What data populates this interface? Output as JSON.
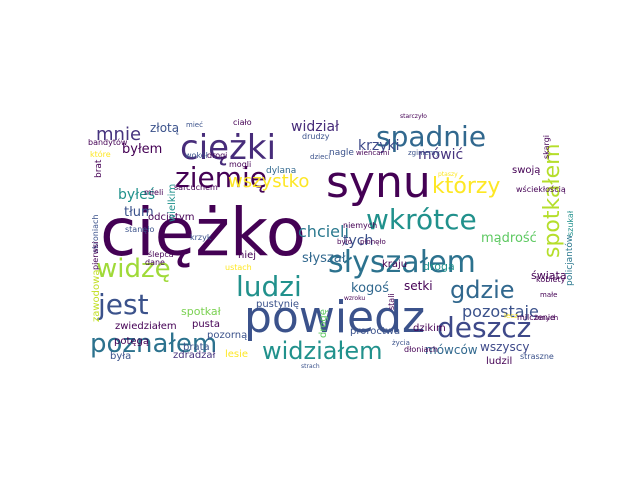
{
  "words": [
    {
      "t": "ciężko",
      "c": "#440154"
    },
    {
      "t": "synu",
      "c": "#440154"
    },
    {
      "t": "powiedz",
      "c": "#3b528b"
    },
    {
      "t": "ciężki",
      "c": "#472c7a"
    },
    {
      "t": "spadnie",
      "c": "#31688e"
    },
    {
      "t": "wkrótce",
      "c": "#21918c"
    },
    {
      "t": "słyszałem",
      "c": "#2c728e"
    },
    {
      "t": "ziemię",
      "c": "#440154"
    },
    {
      "t": "widzę",
      "c": "#a0da39"
    },
    {
      "t": "jest",
      "c": "#3b528b"
    },
    {
      "t": "ludzi",
      "c": "#21918c"
    },
    {
      "t": "poznałem",
      "c": "#2c728e"
    },
    {
      "t": "deszcz",
      "c": "#3e4989"
    },
    {
      "t": "widziałem",
      "c": "#21918c"
    },
    {
      "t": "gdzie",
      "c": "#31688e"
    },
    {
      "t": "którzy",
      "c": "#fde725"
    },
    {
      "t": "spotkałem",
      "c": "#b5de2b"
    },
    {
      "t": "wszystko",
      "c": "#fde725"
    },
    {
      "t": "mnie",
      "c": "#46337e"
    },
    {
      "t": "chcieli",
      "c": "#2a788e"
    },
    {
      "t": "pozostaje",
      "c": "#3b528b"
    },
    {
      "t": "widział",
      "c": "#472c7a"
    },
    {
      "t": "krzyki",
      "c": "#3e4989"
    },
    {
      "t": "mówić",
      "c": "#46337e"
    },
    {
      "t": "byłem",
      "c": "#440154"
    },
    {
      "t": "złotą",
      "c": "#3b528b"
    },
    {
      "t": "byłeś",
      "c": "#21918c"
    },
    {
      "t": "tłum",
      "c": "#3b528b"
    },
    {
      "t": "tych",
      "c": "#3b528b"
    },
    {
      "t": "mądrość",
      "c": "#5ec962"
    },
    {
      "t": "słyszał",
      "c": "#31688e"
    },
    {
      "t": "kogoś",
      "c": "#31688e"
    },
    {
      "t": "setki",
      "c": "#440154"
    },
    {
      "t": "odciętym",
      "c": "#440154"
    },
    {
      "t": "spotkał",
      "c": "#7ad151"
    },
    {
      "t": "pusta",
      "c": "#440154"
    },
    {
      "t": "brata",
      "c": "#3b528b"
    },
    {
      "t": "zdradzał",
      "c": "#46337e"
    },
    {
      "t": "potęgą",
      "c": "#440154"
    },
    {
      "t": "zwiedziałem",
      "c": "#440154"
    },
    {
      "t": "była",
      "c": "#3b528b"
    },
    {
      "t": "mówców",
      "c": "#31688e"
    },
    {
      "t": "wszyscy",
      "c": "#3e4989"
    },
    {
      "t": "ludzil",
      "c": "#440154"
    },
    {
      "t": "świata",
      "c": "#440154"
    },
    {
      "t": "droga",
      "c": "#21918c"
    },
    {
      "t": "kraju",
      "c": "#440154"
    },
    {
      "t": "dzikim",
      "c": "#440154"
    },
    {
      "t": "proroctwa",
      "c": "#3b528b"
    },
    {
      "t": "pustynię",
      "c": "#3b528b"
    },
    {
      "t": "drogę",
      "c": "#5ec962"
    },
    {
      "t": "pozorną",
      "c": "#3b528b"
    },
    {
      "t": "lesie",
      "c": "#fde725"
    },
    {
      "t": "zawodową",
      "c": "#c2df23"
    },
    {
      "t": "swoją",
      "c": "#440154"
    },
    {
      "t": "policjantów",
      "c": "#2a788e"
    },
    {
      "t": "nagle",
      "c": "#3b528b"
    },
    {
      "t": "dylana",
      "c": "#31688e"
    },
    {
      "t": "mogli",
      "c": "#440154"
    },
    {
      "t": "drogi",
      "c": "#440154"
    },
    {
      "t": "wokół",
      "c": "#3b528b"
    },
    {
      "t": "bandytów",
      "c": "#440154"
    },
    {
      "t": "które",
      "c": "#fde725"
    },
    {
      "t": "brat",
      "c": "#440154"
    },
    {
      "t": "skroniach",
      "c": "#3b528b"
    },
    {
      "t": "pierwsi",
      "c": "#440154"
    },
    {
      "t": "stanęło",
      "c": "#3b528b"
    },
    {
      "t": "krzyk",
      "c": "#3b528b"
    },
    {
      "t": "ślepca",
      "c": "#440154"
    },
    {
      "t": "dane",
      "c": "#440154"
    },
    {
      "t": "ustach",
      "c": "#fde725"
    },
    {
      "t": "niej",
      "c": "#440154"
    },
    {
      "t": "było",
      "c": "#440154"
    },
    {
      "t": "płonęło",
      "c": "#440154"
    },
    {
      "t": "niemych",
      "c": "#440154"
    },
    {
      "t": "mieli",
      "c": "#440154"
    },
    {
      "t": "sarcuchem",
      "c": "#440154"
    },
    {
      "t": "wielkim",
      "c": "#21918c"
    },
    {
      "t": "ciało",
      "c": "#440154"
    },
    {
      "t": "mieć",
      "c": "#3b528b"
    },
    {
      "t": "drudzy",
      "c": "#3b528b"
    },
    {
      "t": "dzieci",
      "c": "#3b528b"
    },
    {
      "t": "wieńcami",
      "c": "#440154"
    },
    {
      "t": "zginiemy",
      "c": "#3b528b"
    },
    {
      "t": "starczyło",
      "c": "#440154"
    },
    {
      "t": "ptaszy",
      "c": "#fde725"
    },
    {
      "t": "skargi",
      "c": "#440154"
    },
    {
      "t": "wściekłością",
      "c": "#440154"
    },
    {
      "t": "kobiety",
      "c": "#440154"
    },
    {
      "t": "małe",
      "c": "#440154"
    },
    {
      "t": "innych",
      "c": "#440154"
    },
    {
      "t": "milczenie",
      "c": "#440154"
    },
    {
      "t": "lecz",
      "c": "#fde725"
    },
    {
      "t": "szukał",
      "c": "#21918c"
    },
    {
      "t": "straszne",
      "c": "#3b528b"
    },
    {
      "t": "dłoniach",
      "c": "#440154"
    },
    {
      "t": "życia",
      "c": "#3b528b"
    },
    {
      "t": "stali",
      "c": "#440154"
    },
    {
      "t": "strach",
      "c": "#3b528b"
    },
    {
      "t": "wzroku",
      "c": "#440154"
    }
  ]
}
